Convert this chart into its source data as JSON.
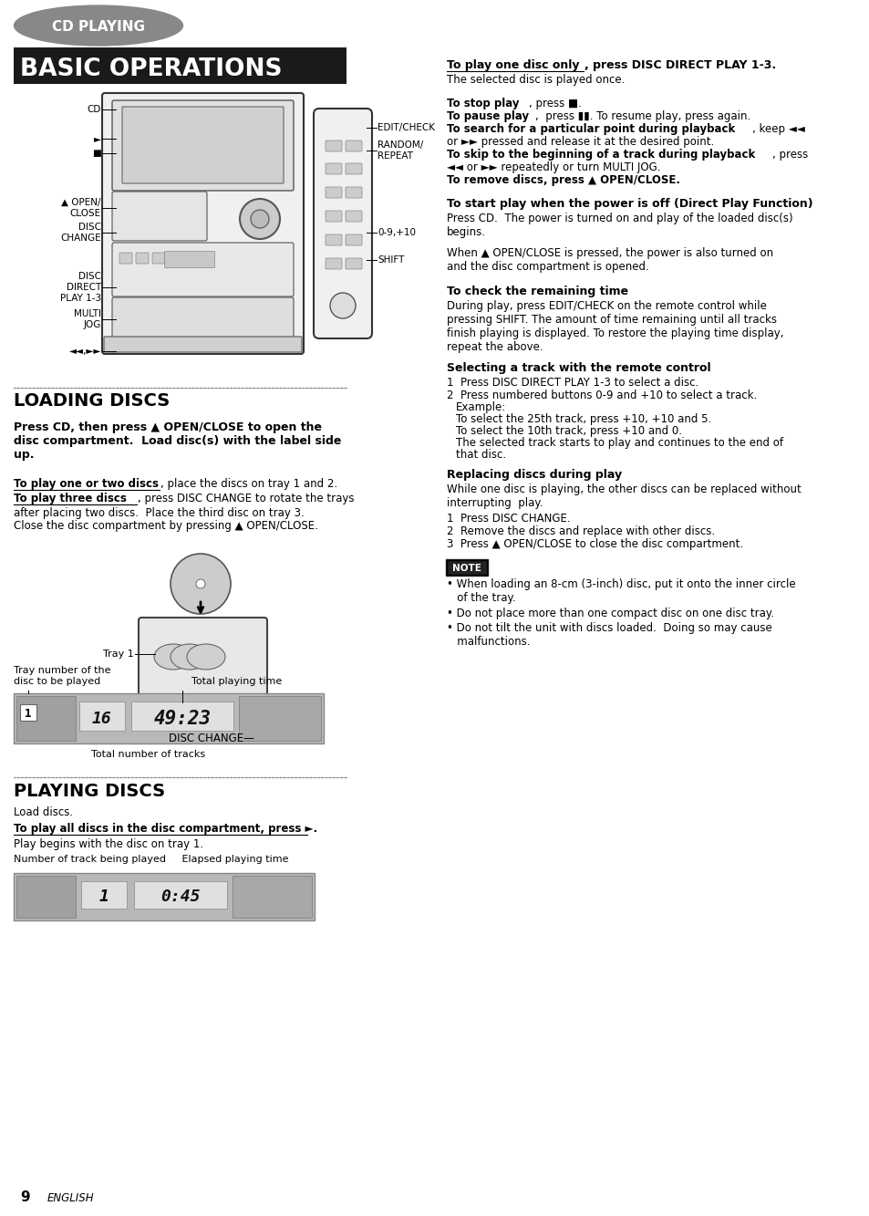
{
  "bg_color": "#ffffff",
  "cd_playing_label": "CD PLAYING",
  "section1_title": "BASIC OPERATIONS",
  "section2_title": "LOADING DISCS",
  "section3_title": "PLAYING DISCS",
  "page_number": "9",
  "page_label": "ENGLISH"
}
